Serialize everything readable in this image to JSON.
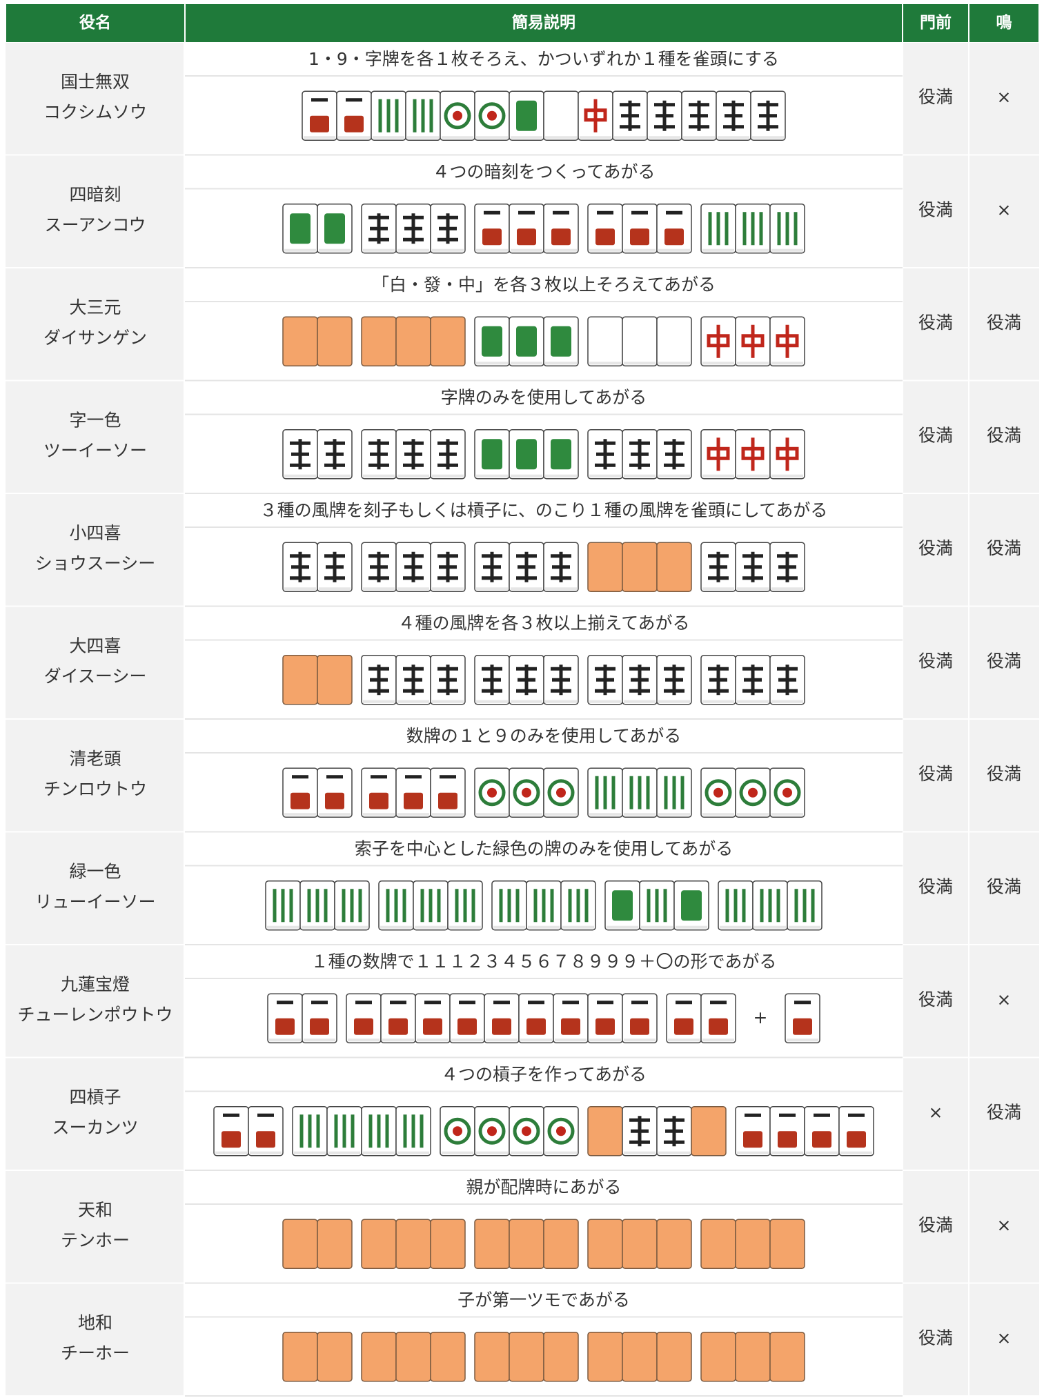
{
  "header": {
    "columns": [
      "役名",
      "簡易説明",
      "門前",
      "鳴"
    ]
  },
  "rows": [
    {
      "name": "国士無双",
      "reading": "コクシムソウ",
      "description": "1・9・字牌を各１枚そろえ、かついずれか１種を雀頭にする",
      "menzen": "役満",
      "naki": "×"
    },
    {
      "name": "四暗刻",
      "reading": "スーアンコウ",
      "description": "４つの暗刻をつくってあがる",
      "menzen": "役満",
      "naki": "×"
    },
    {
      "name": "大三元",
      "reading": "ダイサンゲン",
      "description": "「白・發・中」を各３枚以上そろえてあがる",
      "menzen": "役満",
      "naki": "役満"
    },
    {
      "name": "字一色",
      "reading": "ツーイーソー",
      "description": "字牌のみを使用してあがる",
      "menzen": "役満",
      "naki": "役満"
    },
    {
      "name": "小四喜",
      "reading": "ショウスーシー",
      "description": "３種の風牌を刻子もしくは槓子に、のこり１種の風牌を雀頭にしてあがる",
      "menzen": "役満",
      "naki": "役満"
    },
    {
      "name": "大四喜",
      "reading": "ダイスーシー",
      "description": "４種の風牌を各３枚以上揃えてあがる",
      "menzen": "役満",
      "naki": "役満"
    },
    {
      "name": "清老頭",
      "reading": "チンロウトウ",
      "description": "数牌の１と９のみを使用してあがる",
      "menzen": "役満",
      "naki": "役満"
    },
    {
      "name": "緑一色",
      "reading": "リューイーソー",
      "description": "索子を中心とした緑色の牌のみを使用してあがる",
      "menzen": "役満",
      "naki": "役満"
    },
    {
      "name": "九蓮宝燈",
      "reading": "チューレンポウトウ",
      "description": "１種の数牌で１１１２３４５６７８９９９＋〇の形であがる",
      "menzen": "役満",
      "naki": "×",
      "tile_note": "+"
    },
    {
      "name": "四槓子",
      "reading": "スーカンツ",
      "description": "４つの槓子を作ってあがる",
      "menzen": "×",
      "naki": "役満"
    },
    {
      "name": "天和",
      "reading": "テンホー",
      "description": "親が配牌時にあがる",
      "menzen": "役満",
      "naki": "×"
    },
    {
      "name": "地和",
      "reading": "チーホー",
      "description": "子が第一ツモであがる",
      "menzen": "役満",
      "naki": "×"
    }
  ]
}
